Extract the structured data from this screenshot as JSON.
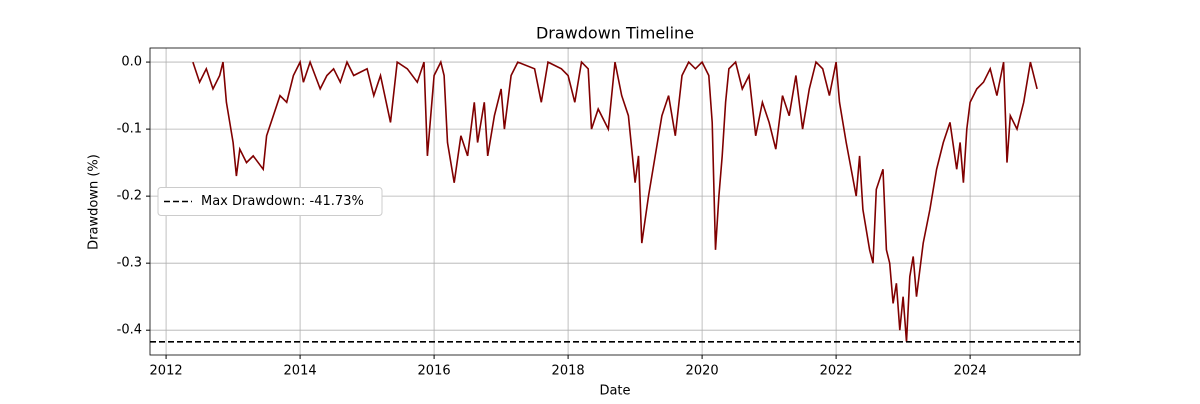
{
  "chart_data": {
    "type": "line",
    "title": "Drawdown Timeline",
    "x_label": "Date",
    "y_label": "Drawdown (%)",
    "color": "#800000",
    "x": [
      2012.4,
      2012.5,
      2012.6,
      2012.7,
      2012.8,
      2012.85,
      2012.9,
      2013.0,
      2013.05,
      2013.1,
      2013.2,
      2013.3,
      2013.45,
      2013.5,
      2013.6,
      2013.7,
      2013.8,
      2013.9,
      2014.0,
      2014.05,
      2014.15,
      2014.3,
      2014.4,
      2014.5,
      2014.6,
      2014.7,
      2014.8,
      2015.0,
      2015.1,
      2015.2,
      2015.35,
      2015.45,
      2015.6,
      2015.75,
      2015.85,
      2015.9,
      2016.0,
      2016.1,
      2016.15,
      2016.2,
      2016.3,
      2016.4,
      2016.5,
      2016.6,
      2016.65,
      2016.75,
      2016.8,
      2016.9,
      2017.0,
      2017.05,
      2017.15,
      2017.25,
      2017.5,
      2017.6,
      2017.7,
      2017.9,
      2018.0,
      2018.1,
      2018.2,
      2018.3,
      2018.35,
      2018.45,
      2018.6,
      2018.7,
      2018.8,
      2018.9,
      2019.0,
      2019.05,
      2019.1,
      2019.2,
      2019.3,
      2019.4,
      2019.5,
      2019.6,
      2019.7,
      2019.8,
      2019.9,
      2020.0,
      2020.1,
      2020.15,
      2020.2,
      2020.25,
      2020.3,
      2020.35,
      2020.4,
      2020.5,
      2020.6,
      2020.7,
      2020.8,
      2020.9,
      2021.0,
      2021.1,
      2021.2,
      2021.3,
      2021.4,
      2021.5,
      2021.6,
      2021.7,
      2021.8,
      2021.9,
      2022.0,
      2022.05,
      2022.15,
      2022.3,
      2022.35,
      2022.4,
      2022.5,
      2022.55,
      2022.6,
      2022.7,
      2022.75,
      2022.8,
      2022.85,
      2022.9,
      2022.95,
      2023.0,
      2023.05,
      2023.1,
      2023.15,
      2023.2,
      2023.3,
      2023.4,
      2023.5,
      2023.6,
      2023.7,
      2023.8,
      2023.85,
      2023.9,
      2023.95,
      2024.0,
      2024.1,
      2024.2,
      2024.3,
      2024.4,
      2024.5,
      2024.55,
      2024.6,
      2024.7,
      2024.8,
      2024.9,
      2025.0
    ],
    "values": [
      0,
      -0.03,
      -0.01,
      -0.04,
      -0.02,
      0,
      -0.06,
      -0.12,
      -0.17,
      -0.13,
      -0.15,
      -0.14,
      -0.16,
      -0.11,
      -0.08,
      -0.05,
      -0.06,
      -0.02,
      0,
      -0.03,
      0,
      -0.04,
      -0.02,
      -0.01,
      -0.03,
      0,
      -0.02,
      -0.01,
      -0.05,
      -0.02,
      -0.09,
      0,
      -0.01,
      -0.03,
      0,
      -0.14,
      -0.02,
      0,
      -0.02,
      -0.12,
      -0.18,
      -0.11,
      -0.14,
      -0.06,
      -0.12,
      -0.06,
      -0.14,
      -0.08,
      -0.04,
      -0.1,
      -0.02,
      0,
      -0.01,
      -0.06,
      0,
      -0.01,
      -0.02,
      -0.06,
      0,
      -0.01,
      -0.1,
      -0.07,
      -0.1,
      0,
      -0.05,
      -0.08,
      -0.18,
      -0.14,
      -0.27,
      -0.2,
      -0.14,
      -0.08,
      -0.05,
      -0.11,
      -0.02,
      0,
      -0.01,
      0,
      -0.02,
      -0.09,
      -0.28,
      -0.2,
      -0.14,
      -0.06,
      -0.01,
      0,
      -0.04,
      -0.02,
      -0.11,
      -0.06,
      -0.09,
      -0.13,
      -0.05,
      -0.08,
      -0.02,
      -0.1,
      -0.04,
      0,
      -0.01,
      -0.05,
      0,
      -0.06,
      -0.12,
      -0.2,
      -0.14,
      -0.22,
      -0.28,
      -0.3,
      -0.19,
      -0.16,
      -0.28,
      -0.3,
      -0.36,
      -0.33,
      -0.4,
      -0.35,
      -0.4173,
      -0.32,
      -0.29,
      -0.35,
      -0.27,
      -0.22,
      -0.16,
      -0.12,
      -0.09,
      -0.16,
      -0.12,
      -0.18,
      -0.1,
      -0.06,
      -0.04,
      -0.03,
      -0.01,
      -0.05,
      0,
      -0.15,
      -0.08,
      -0.1,
      -0.06,
      0,
      -0.04
    ],
    "reference_line": {
      "label": "Max Drawdown: -41.73%",
      "value": -0.4173,
      "color": "#000000",
      "style": "dashed"
    },
    "xlim": [
      2011.76,
      2025.64
    ],
    "xticks": [
      2012,
      2014,
      2016,
      2018,
      2020,
      2022,
      2024
    ],
    "ylim": [
      -0.437,
      0.021
    ],
    "yticks": [
      {
        "value": 0,
        "label": "0.0"
      },
      -0.1,
      -0.2,
      -0.3,
      -0.4
    ],
    "grid": true,
    "legend": "center left"
  }
}
